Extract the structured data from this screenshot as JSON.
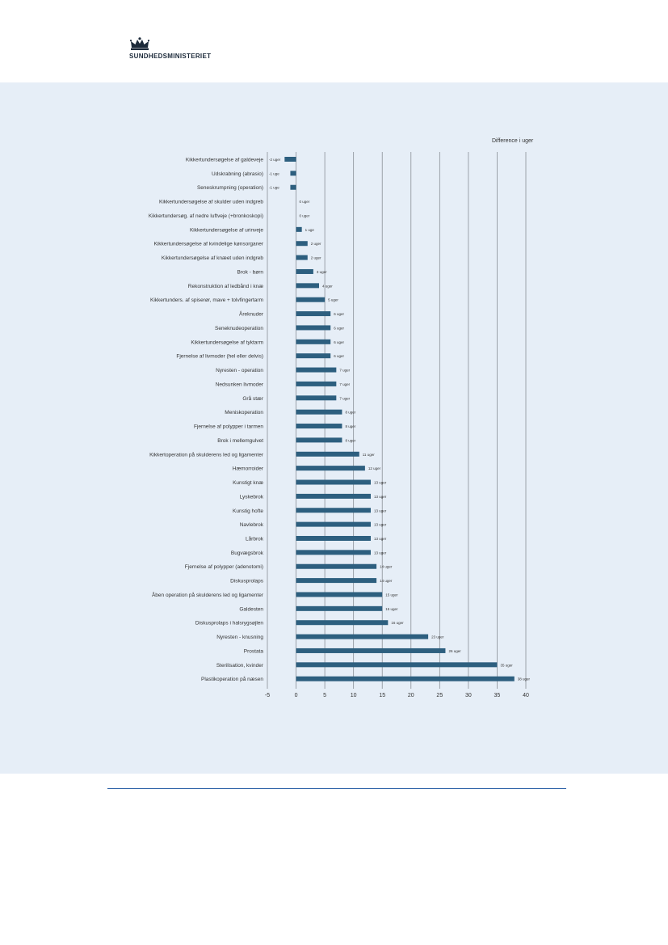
{
  "header": {
    "logo_text": "SUNDHEDSMINISTERIET"
  },
  "chart_data": {
    "type": "bar",
    "orientation": "horizontal",
    "unit_label": "Difference i uger",
    "xlim": [
      -5,
      40
    ],
    "xticks": [
      -5,
      0,
      5,
      10,
      15,
      20,
      25,
      30,
      35,
      40
    ],
    "grid": true,
    "bar_color": "#2d5f7f",
    "categories": [
      "Kikkertundersøgelse af galdeveje",
      "Udskrabning (abrasio)",
      "Seneskrumpning (operation)",
      "Kikkertundersøgelse af skulder uden indgreb",
      "Kikkertundersøg. af nedre luftveje (+bronkoskopi)",
      "Kikkertundersøgelse af urinveje",
      "Kikkertundersøgelse af kvindelige kønsorganer",
      "Kikkertundersøgelse af knæet uden indgreb",
      "Brok - børn",
      "Rekonstruktion af ledbånd i knæ",
      "Kikkertunders. af spiserør, mave + tolvfingertarm",
      "Åreknuder",
      "Seneknudeoperation",
      "Kikkertundersøgelse af tyktarm",
      "Fjernelse af livmoder (hel eller delvis)",
      "Nyresten - operation",
      "Nedsunken livmoder",
      "Grå stær",
      "Meniskoperation",
      "Fjernelse af polypper i tarmen",
      "Brok i mellemgulvet",
      "Kikkertoperation på skulderens led og ligamenter",
      "Hæmorroider",
      "Kunstigt knæ",
      "Lyskebrok",
      "Kunstig hofte",
      "Navlebrok",
      "Lårbrok",
      "Bugvægsbrok",
      "Fjernelse af polypper (adenotomi)",
      "Diskusprolaps",
      "Åben operation på skulderens led og ligamenter",
      "Galdesten",
      "Diskusprolaps i halsrygsøjlen",
      "Nyresten - knusning",
      "Prostata",
      "Sterilisation, kvinder",
      "Plastikoperation på næsen"
    ],
    "values": [
      -2,
      -1,
      -1,
      0,
      0,
      1,
      2,
      2,
      3,
      4,
      5,
      6,
      6,
      6,
      6,
      7,
      7,
      7,
      8,
      8,
      8,
      11,
      12,
      13,
      13,
      13,
      13,
      13,
      13,
      14,
      14,
      15,
      15,
      16,
      23,
      26,
      35,
      38
    ],
    "value_labels": [
      "-2 uger",
      "-1 uge",
      "-1 uge",
      "0 uger",
      "0 uger",
      "1 uge",
      "2 uger",
      "2 uger",
      "3 uger",
      "4 uger",
      "5 uger",
      "6 uger",
      "6 uger",
      "6 uger",
      "6 uger",
      "7 uger",
      "7 uger",
      "7 uger",
      "8 uger",
      "8 uger",
      "8 uger",
      "11 uger",
      "12 uger",
      "13 uger",
      "13 uger",
      "13 uger",
      "13 uger",
      "13 uger",
      "13 uger",
      "14 uger",
      "14 uger",
      "15 uger",
      "15 uger",
      "16 uger",
      "23 uger",
      "26 uger",
      "35 uger",
      "38 uger"
    ]
  }
}
